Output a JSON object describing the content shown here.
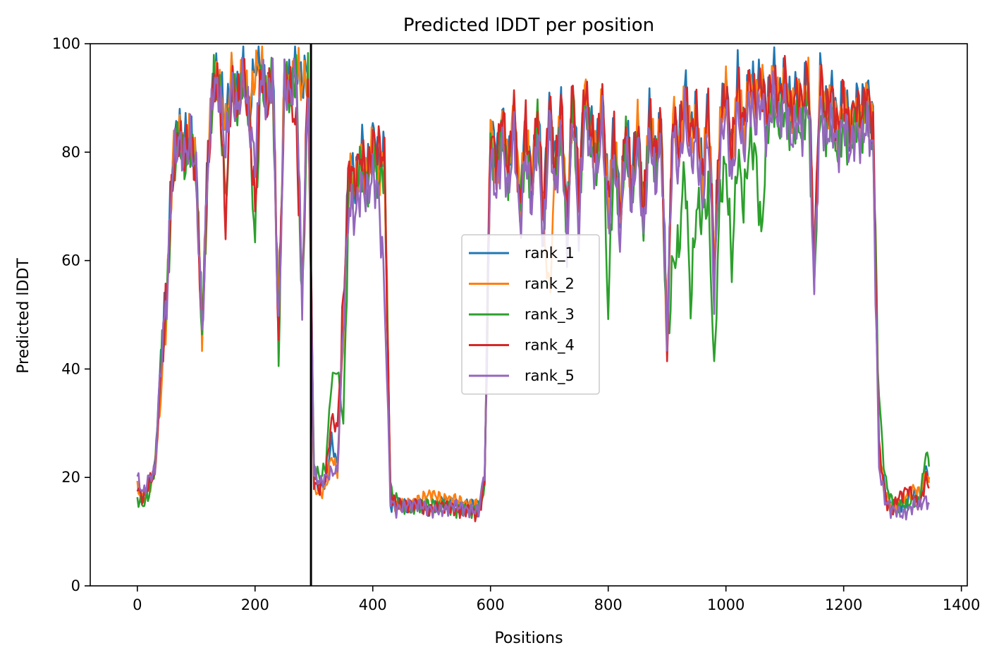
{
  "chart_data": {
    "type": "line",
    "title": "Predicted lDDT per position",
    "xlabel": "Positions",
    "ylabel": "Predicted lDDT",
    "xlim": [
      -80,
      1410
    ],
    "ylim": [
      0,
      100
    ],
    "x_ticks": [
      0,
      200,
      400,
      600,
      800,
      1000,
      1200,
      1400
    ],
    "y_ticks": [
      0,
      20,
      40,
      60,
      80,
      100
    ],
    "grid": false,
    "legend_position": "center",
    "vline": {
      "x": 295,
      "color": "#000000"
    },
    "anchors_x": [
      0,
      10,
      20,
      30,
      40,
      50,
      60,
      70,
      80,
      90,
      100,
      110,
      120,
      130,
      140,
      150,
      160,
      170,
      180,
      190,
      200,
      210,
      220,
      230,
      240,
      250,
      260,
      270,
      280,
      290,
      300,
      310,
      320,
      330,
      340,
      350,
      360,
      370,
      380,
      390,
      400,
      410,
      420,
      430,
      440,
      460,
      480,
      500,
      520,
      540,
      560,
      580,
      590,
      600,
      610,
      620,
      630,
      640,
      650,
      660,
      670,
      680,
      690,
      700,
      710,
      720,
      730,
      740,
      750,
      760,
      770,
      780,
      790,
      800,
      810,
      820,
      830,
      840,
      850,
      860,
      870,
      880,
      890,
      900,
      910,
      920,
      930,
      940,
      950,
      960,
      970,
      980,
      990,
      1000,
      1010,
      1020,
      1030,
      1040,
      1050,
      1060,
      1070,
      1080,
      1090,
      1100,
      1110,
      1120,
      1130,
      1140,
      1150,
      1160,
      1170,
      1180,
      1190,
      1200,
      1210,
      1220,
      1230,
      1240,
      1250,
      1260,
      1270,
      1280,
      1290,
      1300,
      1310,
      1320,
      1330,
      1340,
      1345
    ],
    "series": [
      {
        "name": "rank_1",
        "color": "#1f77b4",
        "values": [
          18,
          16,
          19,
          22,
          42,
          55,
          80,
          85,
          82,
          84,
          78,
          47,
          80,
          95,
          93,
          85,
          95,
          90,
          96,
          88,
          96,
          97,
          90,
          96,
          48,
          95,
          92,
          97,
          93,
          96,
          20,
          18,
          19,
          27,
          22,
          50,
          79,
          75,
          82,
          76,
          84,
          78,
          80,
          15,
          15,
          15,
          15,
          14,
          16,
          15,
          15,
          15,
          20,
          85,
          80,
          86,
          78,
          88,
          70,
          85,
          75,
          88,
          70,
          89,
          78,
          88,
          68,
          92,
          72,
          92,
          85,
          80,
          90,
          72,
          84,
          70,
          85,
          75,
          86,
          70,
          87,
          80,
          86,
          45,
          88,
          82,
          92,
          84,
          88,
          75,
          90,
          60,
          85,
          93,
          80,
          94,
          85,
          95,
          90,
          95,
          88,
          96,
          90,
          95,
          88,
          92,
          90,
          96,
          60,
          95,
          88,
          92,
          85,
          92,
          85,
          90,
          88,
          92,
          86,
          25,
          18,
          15,
          15,
          15,
          16,
          17,
          16,
          22,
          20
        ],
        "anchor": 0
      },
      {
        "name": "rank_2",
        "color": "#ff7f0e",
        "values": [
          18,
          16,
          18,
          21,
          35,
          52,
          78,
          84,
          80,
          83,
          77,
          47,
          79,
          94,
          92,
          84,
          94,
          89,
          95,
          87,
          95,
          96,
          89,
          95,
          48,
          94,
          91,
          96,
          92,
          95,
          18,
          17,
          18,
          24,
          21,
          48,
          76,
          73,
          80,
          74,
          82,
          76,
          79,
          16,
          15,
          15,
          16,
          17,
          16,
          16,
          15,
          15,
          19,
          84,
          74,
          86,
          77,
          87,
          72,
          84,
          74,
          87,
          68,
          53,
          77,
          87,
          66,
          91,
          70,
          91,
          83,
          79,
          89,
          70,
          83,
          68,
          84,
          73,
          85,
          69,
          86,
          78,
          85,
          44,
          87,
          80,
          90,
          82,
          86,
          74,
          88,
          58,
          84,
          91,
          78,
          92,
          83,
          93,
          88,
          93,
          86,
          94,
          88,
          93,
          86,
          90,
          88,
          94,
          58,
          93,
          86,
          90,
          83,
          90,
          83,
          88,
          86,
          90,
          85,
          24,
          17,
          15,
          15,
          16,
          17,
          18,
          17,
          21,
          19
        ]
      },
      {
        "name": "rank_3",
        "color": "#2ca02c",
        "values": [
          16,
          15,
          17,
          22,
          40,
          52,
          76,
          82,
          78,
          81,
          76,
          46,
          77,
          93,
          90,
          71,
          92,
          88,
          94,
          86,
          63,
          95,
          88,
          94,
          43,
          93,
          90,
          95,
          50,
          94,
          22,
          20,
          22,
          38,
          40,
          30,
          75,
          72,
          78,
          73,
          80,
          74,
          78,
          18,
          16,
          14,
          15,
          15,
          15,
          14,
          14,
          14,
          18,
          82,
          76,
          84,
          76,
          86,
          70,
          82,
          72,
          86,
          66,
          88,
          75,
          86,
          65,
          90,
          68,
          90,
          82,
          78,
          88,
          50,
          82,
          66,
          82,
          72,
          84,
          66,
          85,
          76,
          84,
          43,
          60,
          62,
          78,
          52,
          70,
          68,
          72,
          40,
          72,
          78,
          59,
          80,
          70,
          82,
          80,
          64,
          84,
          90,
          85,
          88,
          84,
          86,
          84,
          90,
          56,
          88,
          84,
          86,
          80,
          86,
          80,
          86,
          84,
          88,
          82,
          35,
          20,
          16,
          15,
          15,
          15,
          16,
          16,
          25,
          22
        ]
      },
      {
        "name": "rank_4",
        "color": "#d62728",
        "values": [
          18,
          16,
          19,
          21,
          39,
          54,
          76,
          83,
          79,
          82,
          76,
          46,
          78,
          93,
          91,
          67,
          93,
          88,
          95,
          87,
          69,
          96,
          89,
          95,
          45,
          94,
          91,
          84,
          55,
          95,
          19,
          18,
          20,
          31,
          29,
          52,
          78,
          74,
          80,
          75,
          82,
          81,
          79,
          17,
          15,
          15,
          15,
          14,
          15,
          14,
          14,
          13,
          19,
          85,
          78,
          88,
          76,
          89,
          69,
          86,
          74,
          88,
          69,
          90,
          76,
          89,
          67,
          93,
          72,
          93,
          84,
          79,
          90,
          70,
          83,
          68,
          85,
          73,
          85,
          68,
          87,
          79,
          85,
          43,
          88,
          80,
          91,
          83,
          87,
          74,
          89,
          58,
          84,
          92,
          79,
          93,
          84,
          93,
          89,
          93,
          87,
          94,
          89,
          94,
          87,
          91,
          89,
          95,
          59,
          94,
          87,
          91,
          84,
          91,
          84,
          89,
          87,
          91,
          85,
          26,
          17,
          13,
          16,
          17,
          18,
          16,
          15,
          20,
          18
        ]
      },
      {
        "name": "rank_5",
        "color": "#9467bd",
        "values": [
          20,
          17,
          20,
          21,
          42,
          53,
          78,
          82,
          79,
          82,
          76,
          46,
          78,
          93,
          90,
          80,
          92,
          87,
          94,
          86,
          78,
          95,
          88,
          94,
          45,
          93,
          90,
          95,
          53,
          94,
          21,
          19,
          20,
          21,
          21,
          48,
          71,
          68,
          74,
          72,
          76,
          72,
          54,
          16,
          14,
          15,
          15,
          14,
          14,
          15,
          14,
          14,
          21,
          80,
          72,
          82,
          72,
          84,
          66,
          80,
          70,
          84,
          62,
          86,
          72,
          84,
          62,
          88,
          65,
          88,
          80,
          75,
          86,
          66,
          80,
          64,
          82,
          70,
          82,
          64,
          84,
          74,
          82,
          46,
          84,
          76,
          87,
          78,
          82,
          70,
          84,
          54,
          80,
          88,
          74,
          88,
          80,
          90,
          85,
          90,
          82,
          91,
          85,
          90,
          82,
          86,
          84,
          90,
          55,
          89,
          82,
          86,
          80,
          86,
          80,
          84,
          82,
          86,
          80,
          22,
          16,
          14,
          14,
          13,
          14,
          15,
          15,
          16,
          15
        ]
      }
    ]
  }
}
